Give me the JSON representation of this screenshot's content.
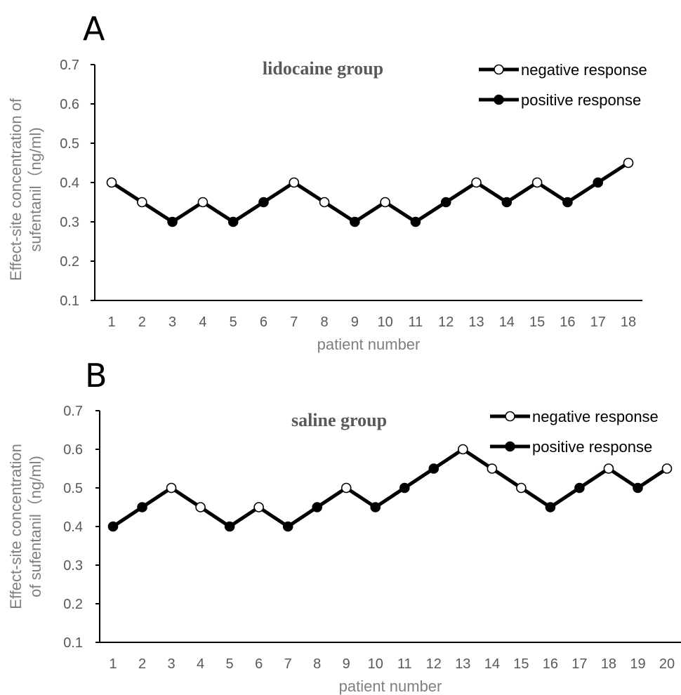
{
  "chart_data": [
    {
      "panel": "A",
      "type": "line",
      "title": "lidocaine group",
      "xlabel": "patient number",
      "ylabel": [
        "Effect-site concentration of",
        "sufentanil（ng/ml)"
      ],
      "ylim": [
        0.1,
        0.7
      ],
      "yticks": [
        "0.1",
        "0.2",
        "0.3",
        "0.4",
        "0.5",
        "0.6",
        "0.7"
      ],
      "grid": false,
      "legend_position": "top-right",
      "legend": [
        {
          "label": "negative response",
          "marker": "open-circle"
        },
        {
          "label": "positive response",
          "marker": "filled-circle"
        }
      ],
      "line_color": "#000000",
      "x": [
        1,
        2,
        3,
        4,
        5,
        6,
        7,
        8,
        9,
        10,
        11,
        12,
        13,
        14,
        15,
        16,
        17,
        18
      ],
      "categories": [
        "1",
        "2",
        "3",
        "4",
        "5",
        "6",
        "7",
        "8",
        "9",
        "10",
        "11",
        "12",
        "13",
        "14",
        "15",
        "16",
        "17",
        "18"
      ],
      "values": [
        0.4,
        0.35,
        0.3,
        0.35,
        0.3,
        0.35,
        0.4,
        0.35,
        0.3,
        0.35,
        0.3,
        0.35,
        0.4,
        0.35,
        0.4,
        0.35,
        0.4,
        0.45
      ],
      "response": [
        "negative",
        "negative",
        "positive",
        "negative",
        "positive",
        "positive",
        "negative",
        "negative",
        "positive",
        "negative",
        "positive",
        "positive",
        "negative",
        "positive",
        "negative",
        "positive",
        "positive",
        "negative"
      ]
    },
    {
      "panel": "B",
      "type": "line",
      "title": "saline group",
      "xlabel": "patient number",
      "ylabel": [
        "Effect-site concentration",
        "of sufentanil（ng/ml)"
      ],
      "ylim": [
        0.1,
        0.7
      ],
      "yticks": [
        "0.1",
        "0.2",
        "0.3",
        "0.4",
        "0.5",
        "0.6",
        "0.7"
      ],
      "grid": false,
      "legend_position": "top-right",
      "legend": [
        {
          "label": "negative response",
          "marker": "open-circle"
        },
        {
          "label": "positive response",
          "marker": "filled-circle"
        }
      ],
      "line_color": "#000000",
      "x": [
        1,
        2,
        3,
        4,
        5,
        6,
        7,
        8,
        9,
        10,
        11,
        12,
        13,
        14,
        15,
        16,
        17,
        18,
        19,
        20
      ],
      "categories": [
        "1",
        "2",
        "3",
        "4",
        "5",
        "6",
        "7",
        "8",
        "9",
        "10",
        "11",
        "12",
        "13",
        "14",
        "15",
        "16",
        "17",
        "18",
        "19",
        "20"
      ],
      "values": [
        0.4,
        0.45,
        0.5,
        0.45,
        0.4,
        0.45,
        0.4,
        0.45,
        0.5,
        0.45,
        0.5,
        0.55,
        0.6,
        0.55,
        0.5,
        0.45,
        0.5,
        0.55,
        0.5,
        0.55
      ],
      "response": [
        "positive",
        "positive",
        "negative",
        "negative",
        "positive",
        "negative",
        "positive",
        "positive",
        "negative",
        "positive",
        "positive",
        "positive",
        "negative",
        "negative",
        "negative",
        "positive",
        "positive",
        "negative",
        "positive",
        "negative"
      ]
    }
  ]
}
